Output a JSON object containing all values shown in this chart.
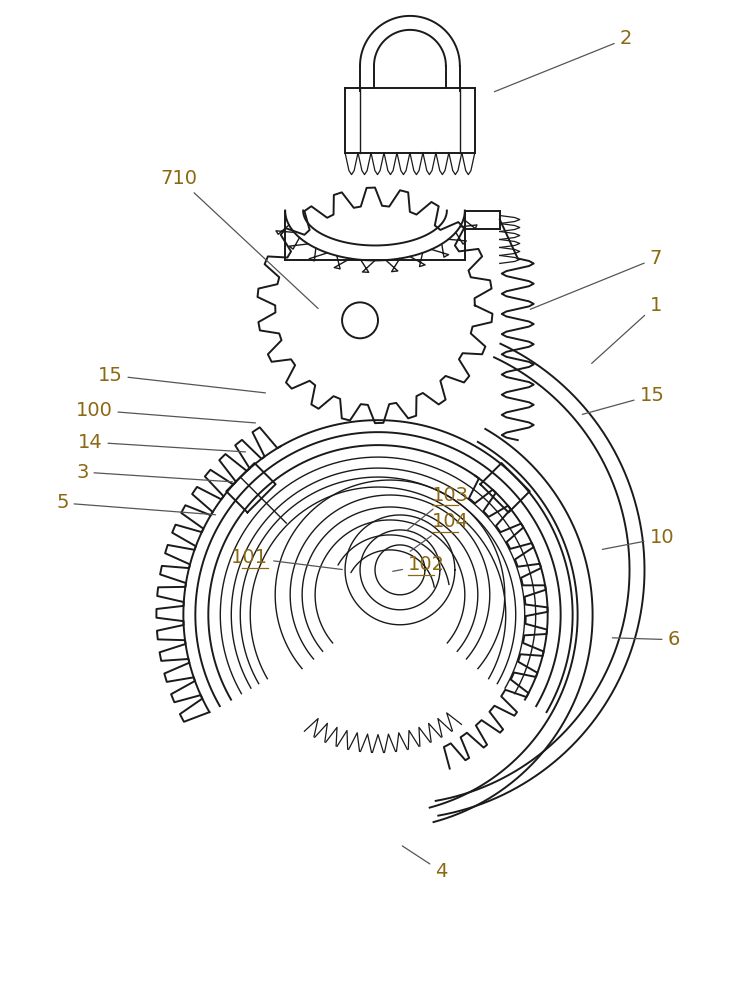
{
  "bg_color": "#ffffff",
  "line_color": "#1a1a1a",
  "label_color": "#8B6914",
  "label_fontsize": 14,
  "fig_width": 7.51,
  "fig_height": 10.0
}
